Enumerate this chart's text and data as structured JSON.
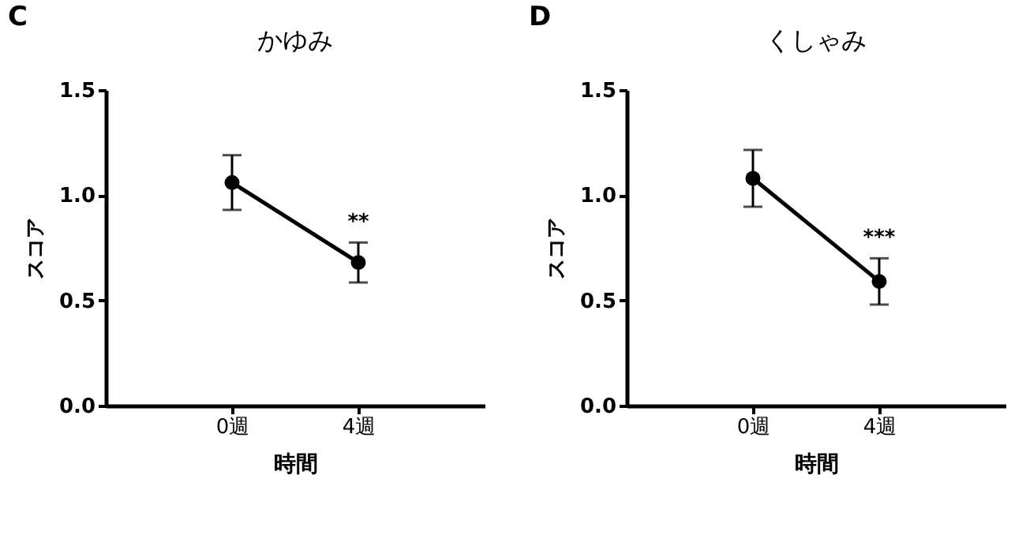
{
  "chart_data": [
    {
      "type": "line",
      "title": "かゆみ",
      "xlabel": "時間",
      "ylabel": "スコア",
      "categories": [
        "0週",
        "4週"
      ],
      "series": [
        {
          "color": "#000000",
          "values": [
            1.06,
            0.68
          ],
          "errors": [
            0.13,
            0.095
          ]
        }
      ],
      "ylim": [
        0,
        1.5
      ],
      "yticks": [
        {
          "value": 0,
          "label": "0.0"
        },
        {
          "value": 0.5,
          "label": "0.5"
        },
        {
          "value": 1,
          "label": "1.0"
        },
        {
          "value": 1.5,
          "label": "1.5"
        }
      ],
      "grid": false,
      "marker": "circle",
      "line_style": "solid",
      "annotations": [
        "C",
        "**"
      ]
    },
    {
      "type": "line",
      "title": "くしゃみ",
      "xlabel": "時間",
      "ylabel": "スコア",
      "categories": [
        "0週",
        "4週"
      ],
      "series": [
        {
          "color": "#000000",
          "values": [
            1.08,
            0.59
          ],
          "errors": [
            0.135,
            0.11
          ]
        }
      ],
      "ylim": [
        0,
        1.5
      ],
      "yticks": [
        {
          "value": 0,
          "label": "0.0"
        },
        {
          "value": 0.5,
          "label": "0.5"
        },
        {
          "value": 1,
          "label": "1.0"
        },
        {
          "value": 1.5,
          "label": "1.5"
        }
      ],
      "grid": false,
      "marker": "circle",
      "line_style": "solid",
      "annotations": [
        "D",
        "***"
      ]
    }
  ]
}
